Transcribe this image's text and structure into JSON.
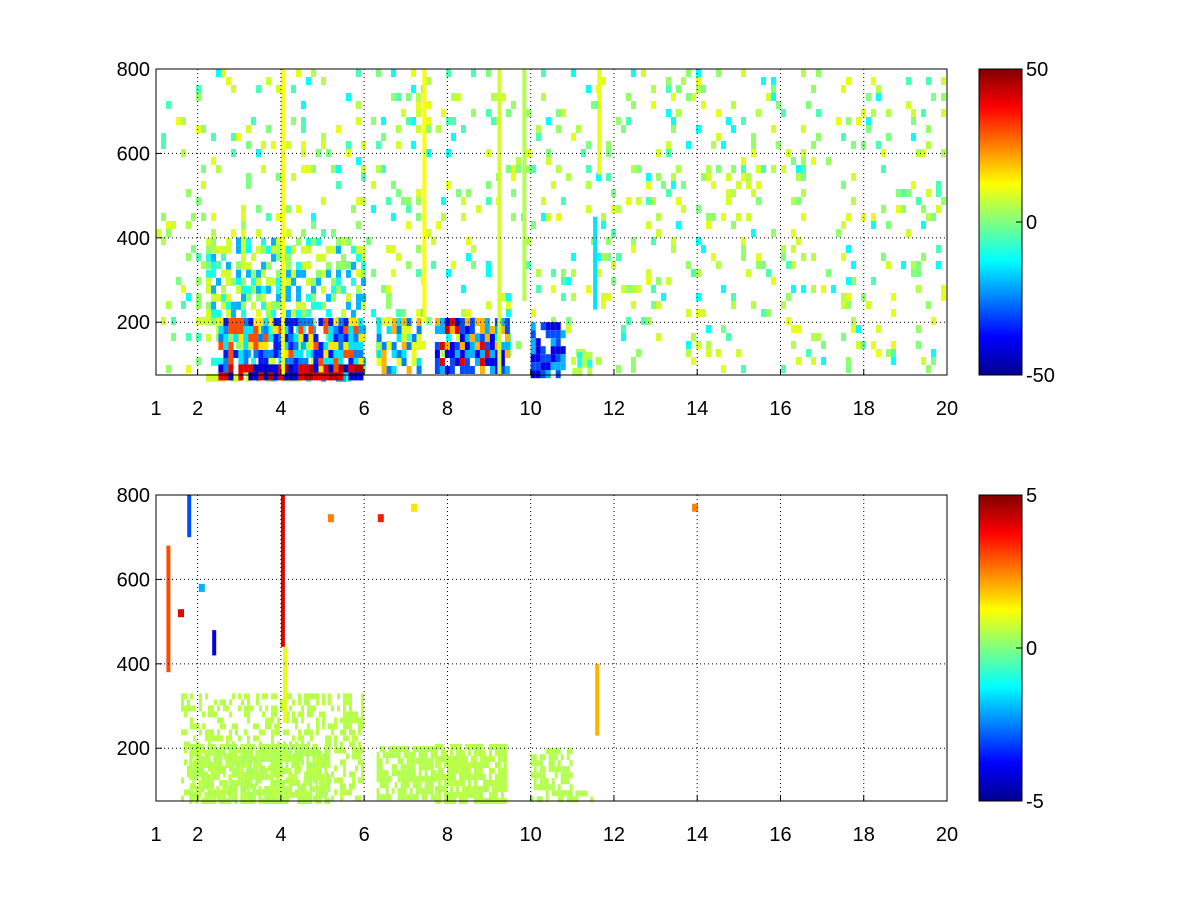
{
  "chart_data": [
    {
      "type": "heatmap",
      "title": "",
      "xlabel": "",
      "ylabel": "",
      "xlim": [
        1,
        20
      ],
      "ylim": [
        75,
        800
      ],
      "x_ticks": [
        1,
        2,
        4,
        6,
        8,
        10,
        12,
        14,
        16,
        18,
        20
      ],
      "x_tick_labels": [
        "1",
        "2",
        "4",
        "6",
        "8",
        "10",
        "12",
        "14",
        "16",
        "18",
        "20"
      ],
      "y_ticks": [
        200,
        400,
        600,
        800
      ],
      "y_tick_labels": [
        "200",
        "400",
        "600",
        "800"
      ],
      "grid": true,
      "colormap": "jet",
      "clim": [
        -50,
        50
      ],
      "colorbar_ticks": [
        -50,
        0,
        50
      ],
      "colorbar_tick_labels": [
        "-50",
        "0",
        "50"
      ],
      "dense_region": {
        "x": [
          1.5,
          6
        ],
        "y": [
          75,
          420
        ],
        "typical_value": -15
      },
      "rect_patches": [
        {
          "x0": 2.2,
          "x1": 6.0,
          "y0": 75,
          "y1": 400,
          "density": 0.5,
          "values": [
            -10,
            8,
            2,
            -20
          ]
        },
        {
          "x0": 2.5,
          "x1": 6.0,
          "y0": 75,
          "y1": 210,
          "density": 0.85,
          "values": [
            -35,
            -25,
            15,
            30,
            -15
          ]
        },
        {
          "x0": 2.5,
          "x1": 6.0,
          "y0": 75,
          "y1": 100,
          "density": 0.9,
          "values": [
            45,
            -45,
            40,
            -40
          ]
        },
        {
          "x0": 6.3,
          "x1": 7.3,
          "y0": 75,
          "y1": 210,
          "density": 0.75,
          "values": [
            -25,
            20,
            -15,
            10
          ]
        },
        {
          "x0": 7.7,
          "x1": 9.5,
          "y0": 75,
          "y1": 210,
          "density": 0.85,
          "values": [
            -40,
            -30,
            20,
            40,
            -20
          ]
        },
        {
          "x0": 10.0,
          "x1": 10.8,
          "y0": 75,
          "y1": 200,
          "density": 0.75,
          "values": [
            -30,
            -20,
            -40
          ]
        },
        {
          "x0": 11.0,
          "x1": 11.5,
          "y0": 75,
          "y1": 130,
          "density": 0.5,
          "values": [
            -10,
            5
          ]
        }
      ],
      "column_streaks": [
        {
          "x": 4.0,
          "y0": 75,
          "y1": 800,
          "value": 12
        },
        {
          "x": 7.4,
          "y0": 200,
          "y1": 800,
          "value": 12
        },
        {
          "x": 9.2,
          "y0": 75,
          "y1": 800,
          "value": 8
        },
        {
          "x": 9.8,
          "y0": 250,
          "y1": 800,
          "value": 5
        },
        {
          "x": 11.5,
          "y0": 230,
          "y1": 450,
          "value": -15
        },
        {
          "x": 11.6,
          "y0": 550,
          "y1": 800,
          "value": 10
        }
      ],
      "sparse_fill": {
        "x": [
          1,
          20
        ],
        "y": [
          75,
          800
        ],
        "density": 0.12,
        "values": [
          0,
          2,
          5,
          8,
          -5,
          -12,
          10
        ]
      }
    },
    {
      "type": "heatmap",
      "title": "",
      "xlabel": "",
      "ylabel": "",
      "xlim": [
        1,
        20
      ],
      "ylim": [
        75,
        800
      ],
      "x_ticks": [
        1,
        2,
        4,
        6,
        8,
        10,
        12,
        14,
        16,
        18,
        20
      ],
      "x_tick_labels": [
        "1",
        "2",
        "4",
        "6",
        "8",
        "10",
        "12",
        "14",
        "16",
        "18",
        "20"
      ],
      "y_ticks": [
        200,
        400,
        600,
        800
      ],
      "y_tick_labels": [
        "200",
        "400",
        "600",
        "800"
      ],
      "grid": true,
      "colormap": "jet",
      "clim": [
        -5,
        5
      ],
      "colorbar_ticks": [
        -5,
        0,
        5
      ],
      "colorbar_tick_labels": [
        "-5",
        "0",
        "5"
      ],
      "dense_region": {
        "x": [
          1.7,
          6
        ],
        "y": [
          75,
          400
        ],
        "typical_value": 0.5
      },
      "rect_patches": [
        {
          "x0": 1.6,
          "x1": 6.0,
          "y0": 75,
          "y1": 330,
          "density": 0.4,
          "values": [
            0.5,
            0.6
          ]
        },
        {
          "x0": 1.8,
          "x1": 5.2,
          "y0": 75,
          "y1": 210,
          "density": 0.8,
          "values": [
            0.5,
            0.6,
            0.4
          ]
        },
        {
          "x0": 6.3,
          "x1": 7.7,
          "y0": 75,
          "y1": 205,
          "density": 0.75,
          "values": [
            0.5
          ]
        },
        {
          "x0": 7.7,
          "x1": 9.4,
          "y0": 75,
          "y1": 210,
          "density": 0.8,
          "values": [
            0.5,
            0.6
          ]
        },
        {
          "x0": 10.0,
          "x1": 11.0,
          "y0": 75,
          "y1": 200,
          "density": 0.6,
          "values": [
            0.5
          ]
        },
        {
          "x0": 11.0,
          "x1": 11.6,
          "y0": 75,
          "y1": 100,
          "density": 0.5,
          "values": [
            0.5
          ]
        }
      ],
      "column_streaks": [
        {
          "x": 4.0,
          "y0": 440,
          "y1": 800,
          "value": 4
        },
        {
          "x": 4.05,
          "y0": 260,
          "y1": 440,
          "value": 1
        },
        {
          "x": 11.55,
          "y0": 230,
          "y1": 400,
          "value": 2
        },
        {
          "x": 1.25,
          "y0": 380,
          "y1": 680,
          "value": 3
        },
        {
          "x": 1.75,
          "y0": 700,
          "y1": 800,
          "value": -3
        },
        {
          "x": 2.35,
          "y0": 420,
          "y1": 480,
          "value": -4
        }
      ],
      "isolated_cells": [
        {
          "x": 13.95,
          "y": 770,
          "value": 2.5
        },
        {
          "x": 6.4,
          "y": 745,
          "value": 3.5
        },
        {
          "x": 5.2,
          "y": 745,
          "value": 2.5
        },
        {
          "x": 7.2,
          "y": 770,
          "value": 1.5
        },
        {
          "x": 1.6,
          "y": 520,
          "value": 4
        },
        {
          "x": 2.1,
          "y": 580,
          "value": -2
        }
      ],
      "sparse_fill": null
    }
  ]
}
